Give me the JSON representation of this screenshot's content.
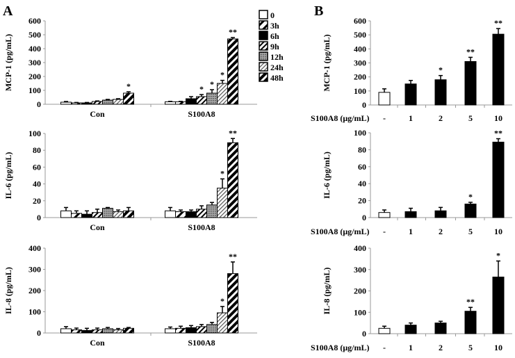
{
  "panel_labels": [
    "A",
    "B"
  ],
  "legend": [
    "0",
    "3h",
    "6h",
    "9h",
    "12h",
    "24h",
    "48h"
  ],
  "colors": {
    "bar_fill": "#000000",
    "control_fill": "#ffffff",
    "grey_fill": "#888888"
  },
  "chart_data": [
    {
      "type": "bar",
      "panel": "A",
      "ylabel": "MCP-1 (pg/mL)",
      "ylim": [
        0,
        600
      ],
      "yticks": [
        0,
        100,
        200,
        300,
        400,
        500,
        600
      ],
      "categories": [
        "Con",
        "S100A8"
      ],
      "series": [
        {
          "name": "0",
          "values": [
            15,
            18
          ],
          "errors": [
            5,
            3
          ],
          "stars": [
            "",
            ""
          ]
        },
        {
          "name": "3h",
          "values": [
            10,
            18
          ],
          "errors": [
            3,
            3
          ],
          "stars": [
            "",
            ""
          ]
        },
        {
          "name": "6h",
          "values": [
            10,
            40
          ],
          "errors": [
            3,
            15
          ],
          "stars": [
            "",
            ""
          ]
        },
        {
          "name": "9h",
          "values": [
            20,
            55
          ],
          "errors": [
            4,
            15
          ],
          "stars": [
            "",
            "*"
          ]
        },
        {
          "name": "12h",
          "values": [
            30,
            80
          ],
          "errors": [
            5,
            25
          ],
          "stars": [
            "",
            "*"
          ]
        },
        {
          "name": "24h",
          "values": [
            35,
            150
          ],
          "errors": [
            5,
            22
          ],
          "stars": [
            "",
            "*"
          ]
        },
        {
          "name": "48h",
          "values": [
            80,
            470
          ],
          "errors": [
            10,
            10
          ],
          "stars": [
            "*",
            "**"
          ]
        }
      ]
    },
    {
      "type": "bar",
      "panel": "A",
      "ylabel": "IL-6 (pg/mL)",
      "ylim": [
        0,
        100
      ],
      "yticks": [
        0,
        20,
        40,
        60,
        80,
        100
      ],
      "categories": [
        "Con",
        "S100A8"
      ],
      "series": [
        {
          "name": "0",
          "values": [
            8,
            8
          ],
          "errors": [
            4,
            4
          ],
          "stars": [
            "",
            ""
          ]
        },
        {
          "name": "3h",
          "values": [
            5,
            7
          ],
          "errors": [
            3,
            2
          ],
          "stars": [
            "",
            ""
          ]
        },
        {
          "name": "6h",
          "values": [
            4,
            7
          ],
          "errors": [
            4,
            2
          ],
          "stars": [
            "",
            ""
          ]
        },
        {
          "name": "9h",
          "values": [
            6,
            10
          ],
          "errors": [
            4,
            4
          ],
          "stars": [
            "",
            ""
          ]
        },
        {
          "name": "12h",
          "values": [
            11,
            15
          ],
          "errors": [
            1,
            3
          ],
          "stars": [
            "",
            ""
          ]
        },
        {
          "name": "24h",
          "values": [
            7,
            35
          ],
          "errors": [
            2,
            11
          ],
          "stars": [
            "",
            "*"
          ]
        },
        {
          "name": "48h",
          "values": [
            8,
            89
          ],
          "errors": [
            4,
            5
          ],
          "stars": [
            "",
            "**"
          ]
        }
      ]
    },
    {
      "type": "bar",
      "panel": "A",
      "ylabel": "IL-8 (pg/mL)",
      "ylim": [
        0,
        400
      ],
      "yticks": [
        0,
        100,
        200,
        300,
        400
      ],
      "categories": [
        "Con",
        "S100A8"
      ],
      "series": [
        {
          "name": "0",
          "values": [
            20,
            20
          ],
          "errors": [
            10,
            8
          ],
          "stars": [
            "",
            ""
          ]
        },
        {
          "name": "3h",
          "values": [
            15,
            22
          ],
          "errors": [
            8,
            10
          ],
          "stars": [
            "",
            ""
          ]
        },
        {
          "name": "6h",
          "values": [
            12,
            25
          ],
          "errors": [
            10,
            10
          ],
          "stars": [
            "",
            ""
          ]
        },
        {
          "name": "9h",
          "values": [
            15,
            30
          ],
          "errors": [
            8,
            10
          ],
          "stars": [
            "",
            ""
          ]
        },
        {
          "name": "12h",
          "values": [
            20,
            40
          ],
          "errors": [
            6,
            10
          ],
          "stars": [
            "",
            ""
          ]
        },
        {
          "name": "24h",
          "values": [
            15,
            95
          ],
          "errors": [
            6,
            30
          ],
          "stars": [
            "",
            "*"
          ]
        },
        {
          "name": "48h",
          "values": [
            22,
            280
          ],
          "errors": [
            4,
            55
          ],
          "stars": [
            "",
            "**"
          ]
        }
      ]
    },
    {
      "type": "bar",
      "panel": "B",
      "ylabel": "MCP-1 (pg/mL)",
      "ylim": [
        0,
        600
      ],
      "yticks": [
        0,
        100,
        200,
        300,
        400,
        500,
        600
      ],
      "xlabel": "S100A8 (μg/mL)",
      "categories": [
        "-",
        "1",
        "2",
        "5",
        "10"
      ],
      "values": [
        90,
        150,
        180,
        310,
        505
      ],
      "errors": [
        25,
        25,
        30,
        30,
        40
      ],
      "stars": [
        "",
        "",
        "*",
        "**",
        "**"
      ]
    },
    {
      "type": "bar",
      "panel": "B",
      "ylabel": "IL-6 (pg/mL)",
      "ylim": [
        0,
        100
      ],
      "yticks": [
        0,
        20,
        40,
        60,
        80,
        100
      ],
      "xlabel": "S100A8 (μg/mL)",
      "categories": [
        "-",
        "1",
        "2",
        "5",
        "10"
      ],
      "values": [
        6,
        7,
        8,
        16,
        89
      ],
      "errors": [
        3,
        4,
        4,
        2,
        4
      ],
      "stars": [
        "",
        "",
        "",
        "*",
        "**"
      ]
    },
    {
      "type": "bar",
      "panel": "B",
      "ylabel": "IL-8 (pg/mL)",
      "ylim": [
        0,
        400
      ],
      "yticks": [
        0,
        100,
        200,
        300,
        400
      ],
      "xlabel": "S100A8 (μg/mL)",
      "categories": [
        "-",
        "1",
        "2",
        "5",
        "10"
      ],
      "values": [
        25,
        40,
        50,
        105,
        265
      ],
      "errors": [
        10,
        10,
        8,
        18,
        75
      ],
      "stars": [
        "",
        "",
        "",
        "**",
        "*"
      ]
    }
  ]
}
